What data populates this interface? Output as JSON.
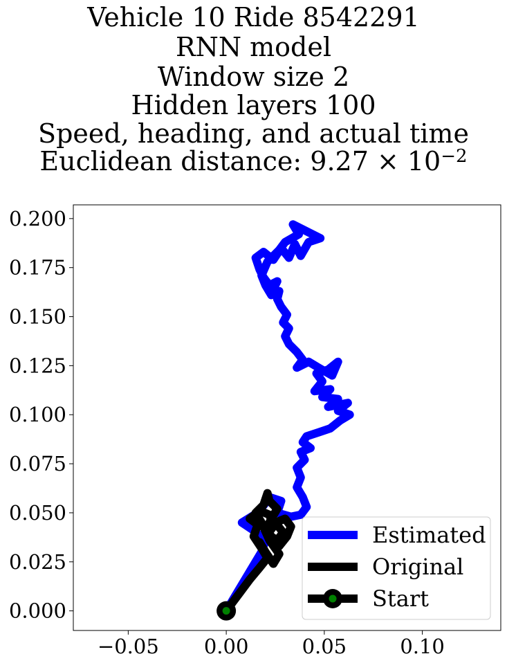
{
  "title": {
    "line1": "Vehicle 10 Ride 8542291",
    "line2": "RNN model",
    "line3": "Window size 2",
    "line4": "Hidden layers 100",
    "line5": "Speed, heading, and actual time",
    "line6_prefix": "Euclidean distance: 9.27 × 10",
    "line6_exp": "−2"
  },
  "chart_data": {
    "type": "line",
    "xlim": [
      -0.078,
      0.14
    ],
    "ylim": [
      -0.01,
      0.207
    ],
    "x_ticks": [
      -0.05,
      0.0,
      0.05,
      0.1
    ],
    "x_tick_labels": [
      "−0.05",
      "0.00",
      "0.05",
      "0.10"
    ],
    "y_ticks": [
      0.0,
      0.025,
      0.05,
      0.075,
      0.1,
      0.125,
      0.15,
      0.175,
      0.2
    ],
    "y_tick_labels": [
      "0.000",
      "0.025",
      "0.050",
      "0.075",
      "0.100",
      "0.125",
      "0.150",
      "0.175",
      "0.200"
    ],
    "grid": false,
    "legend_position": "lower right",
    "series": [
      {
        "name": "Estimated",
        "color": "#0000ff",
        "points": [
          [
            0.0,
            0.0
          ],
          [
            0.006,
            0.01
          ],
          [
            0.012,
            0.02
          ],
          [
            0.018,
            0.03
          ],
          [
            0.02,
            0.036
          ],
          [
            0.014,
            0.041
          ],
          [
            0.008,
            0.045
          ],
          [
            0.016,
            0.05
          ],
          [
            0.02,
            0.055
          ],
          [
            0.022,
            0.058
          ],
          [
            0.028,
            0.056
          ],
          [
            0.026,
            0.05
          ],
          [
            0.033,
            0.048
          ],
          [
            0.038,
            0.049
          ],
          [
            0.041,
            0.053
          ],
          [
            0.039,
            0.058
          ],
          [
            0.036,
            0.063
          ],
          [
            0.038,
            0.068
          ],
          [
            0.036,
            0.073
          ],
          [
            0.04,
            0.077
          ],
          [
            0.038,
            0.081
          ],
          [
            0.043,
            0.083
          ],
          [
            0.039,
            0.086
          ],
          [
            0.041,
            0.089
          ],
          [
            0.047,
            0.091
          ],
          [
            0.053,
            0.093
          ],
          [
            0.058,
            0.097
          ],
          [
            0.063,
            0.1
          ],
          [
            0.057,
            0.102
          ],
          [
            0.062,
            0.106
          ],
          [
            0.052,
            0.104
          ],
          [
            0.057,
            0.108
          ],
          [
            0.049,
            0.109
          ],
          [
            0.053,
            0.113
          ],
          [
            0.045,
            0.112
          ],
          [
            0.049,
            0.117
          ],
          [
            0.046,
            0.121
          ],
          [
            0.052,
            0.123
          ],
          [
            0.057,
            0.127
          ],
          [
            0.054,
            0.12
          ],
          [
            0.047,
            0.124
          ],
          [
            0.042,
            0.127
          ],
          [
            0.036,
            0.124
          ],
          [
            0.039,
            0.128
          ],
          [
            0.036,
            0.132
          ],
          [
            0.032,
            0.136
          ],
          [
            0.03,
            0.14
          ],
          [
            0.032,
            0.144
          ],
          [
            0.029,
            0.147
          ],
          [
            0.031,
            0.151
          ],
          [
            0.028,
            0.155
          ],
          [
            0.026,
            0.159
          ],
          [
            0.027,
            0.163
          ],
          [
            0.023,
            0.162
          ],
          [
            0.026,
            0.168
          ],
          [
            0.022,
            0.166
          ],
          [
            0.019,
            0.17
          ],
          [
            0.017,
            0.174
          ],
          [
            0.015,
            0.18
          ],
          [
            0.019,
            0.183
          ],
          [
            0.024,
            0.179
          ],
          [
            0.028,
            0.185
          ],
          [
            0.032,
            0.18
          ],
          [
            0.035,
            0.187
          ],
          [
            0.038,
            0.181
          ],
          [
            0.042,
            0.188
          ],
          [
            0.048,
            0.19
          ],
          [
            0.034,
            0.197
          ],
          [
            0.037,
            0.192
          ],
          [
            0.03,
            0.188
          ],
          [
            0.027,
            0.184
          ],
          [
            0.021,
            0.178
          ],
          [
            0.018,
            0.171
          ],
          [
            0.02,
            0.166
          ],
          [
            0.023,
            0.161
          ]
        ]
      },
      {
        "name": "Original",
        "color": "#000000",
        "points": [
          [
            0.0,
            0.0
          ],
          [
            0.006,
            0.008
          ],
          [
            0.012,
            0.016
          ],
          [
            0.017,
            0.022
          ],
          [
            0.021,
            0.027
          ],
          [
            0.018,
            0.032
          ],
          [
            0.014,
            0.038
          ],
          [
            0.016,
            0.044
          ],
          [
            0.012,
            0.047
          ],
          [
            0.017,
            0.051
          ],
          [
            0.022,
            0.049
          ],
          [
            0.024,
            0.043
          ],
          [
            0.021,
            0.039
          ],
          [
            0.026,
            0.036
          ],
          [
            0.029,
            0.04
          ],
          [
            0.025,
            0.045
          ],
          [
            0.03,
            0.047
          ],
          [
            0.033,
            0.043
          ],
          [
            0.031,
            0.038
          ],
          [
            0.027,
            0.033
          ],
          [
            0.024,
            0.037
          ],
          [
            0.02,
            0.041
          ],
          [
            0.023,
            0.047
          ],
          [
            0.026,
            0.052
          ],
          [
            0.022,
            0.056
          ],
          [
            0.021,
            0.06
          ],
          [
            0.019,
            0.054
          ],
          [
            0.015,
            0.05
          ],
          [
            0.018,
            0.045
          ],
          [
            0.022,
            0.036
          ],
          [
            0.027,
            0.029
          ],
          [
            0.024,
            0.024
          ],
          [
            0.02,
            0.03
          ],
          [
            0.017,
            0.035
          ]
        ]
      }
    ],
    "start_point": [
      0.0,
      0.0
    ],
    "legend": [
      {
        "label": "Estimated",
        "color": "#0000ff"
      },
      {
        "label": "Original",
        "color": "#000000"
      },
      {
        "label": "Start",
        "color": "#000000",
        "marker_color": "#008000"
      }
    ]
  }
}
